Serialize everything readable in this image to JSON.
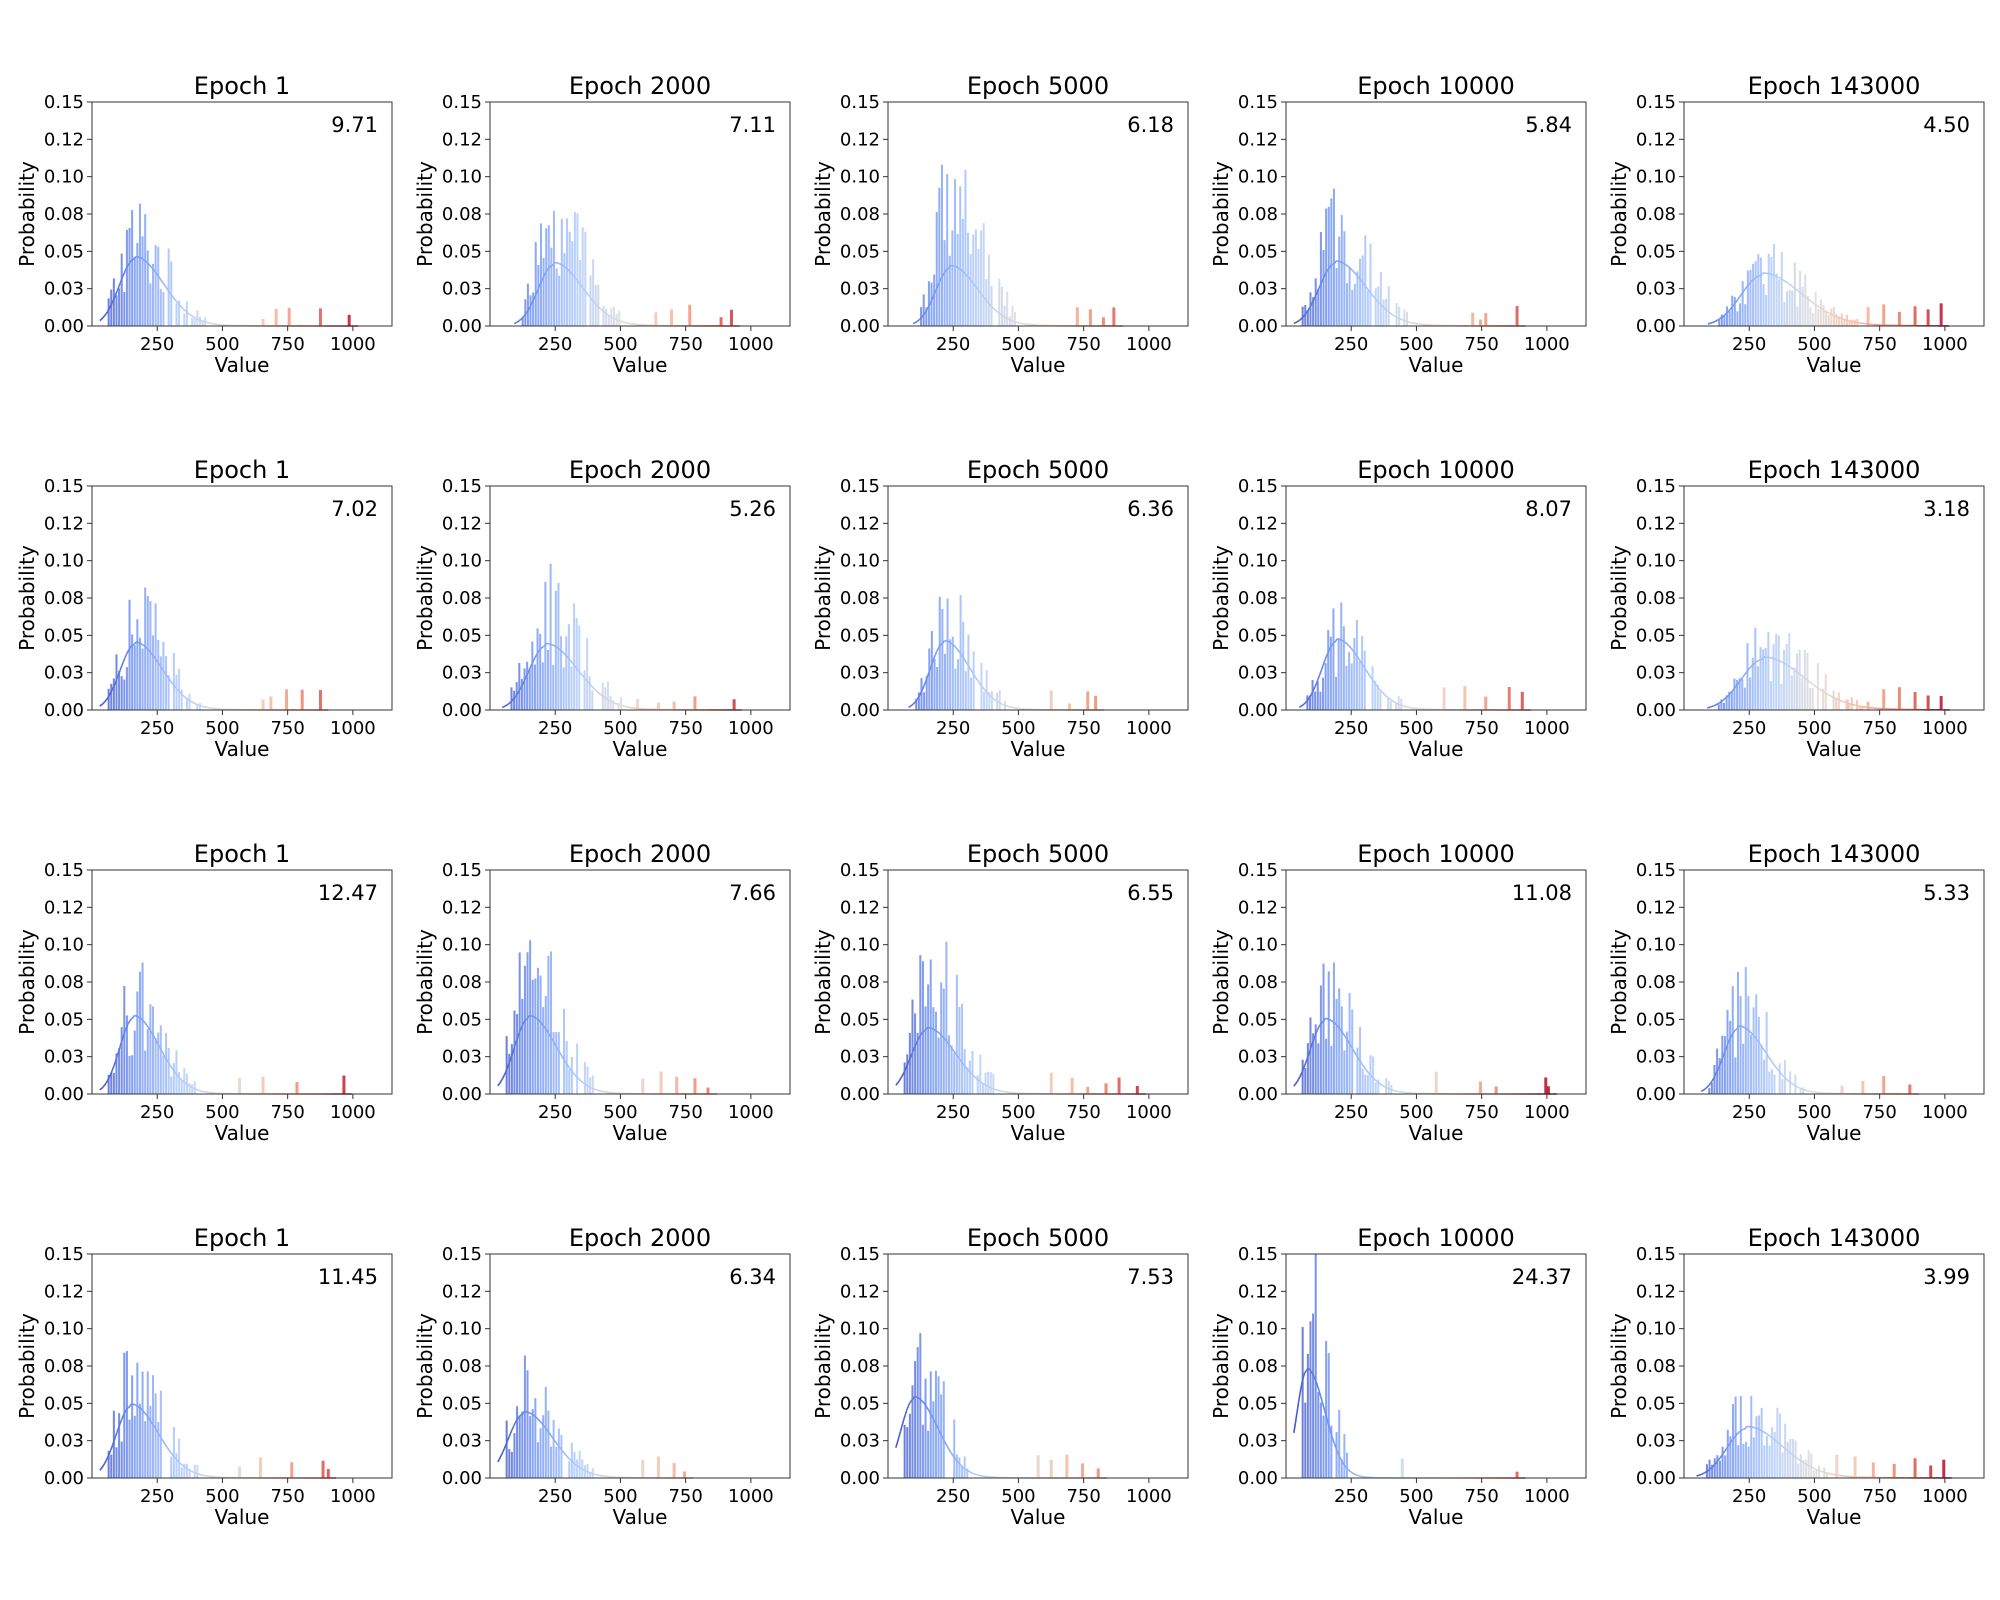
{
  "figure": {
    "x_label": "Value",
    "y_label": "Probability",
    "x_ticks": [
      250,
      500,
      750,
      1000
    ],
    "y_ticks": [
      "0.00",
      "0.03",
      "0.05",
      "0.08",
      "0.10",
      "0.12",
      "0.15"
    ],
    "colormap": [
      "#3b4cc0",
      "#7396f5",
      "#b0cbfc",
      "#dddcdc",
      "#f6bfa6",
      "#e7745b",
      "#b40426"
    ]
  },
  "chart_data": [
    {
      "type": "bar",
      "row": 1,
      "col": 1,
      "title": "Epoch 1",
      "stat": "9.71",
      "xlim": [
        0,
        1150
      ],
      "ylim": [
        0,
        0.15
      ],
      "peak": 0.082,
      "mean": 165,
      "sd": 95,
      "kde_peak": 0.045,
      "outliers": [
        650,
        700,
        750,
        870,
        980
      ]
    },
    {
      "type": "bar",
      "row": 1,
      "col": 2,
      "title": "Epoch 2000",
      "stat": "7.11",
      "xlim": [
        0,
        1150
      ],
      "ylim": [
        0,
        0.15
      ],
      "peak": 0.077,
      "mean": 245,
      "sd": 95,
      "kde_peak": 0.041,
      "outliers": [
        630,
        690,
        760,
        880,
        920
      ]
    },
    {
      "type": "bar",
      "row": 1,
      "col": 3,
      "title": "Epoch 5000",
      "stat": "6.18",
      "xlim": [
        0,
        1150
      ],
      "ylim": [
        0,
        0.15
      ],
      "peak": 0.108,
      "mean": 240,
      "sd": 90,
      "kde_peak": 0.039,
      "outliers": [
        720,
        770,
        820,
        860
      ]
    },
    {
      "type": "bar",
      "row": 1,
      "col": 4,
      "title": "Epoch 10000",
      "stat": "5.84",
      "xlim": [
        0,
        1150
      ],
      "ylim": [
        0,
        0.15
      ],
      "peak": 0.092,
      "mean": 190,
      "sd": 100,
      "kde_peak": 0.042,
      "outliers": [
        710,
        740,
        760,
        880
      ]
    },
    {
      "type": "bar",
      "row": 1,
      "col": 5,
      "title": "Epoch 143000",
      "stat": "4.50",
      "xlim": [
        0,
        1150
      ],
      "ylim": [
        0,
        0.15
      ],
      "peak": 0.055,
      "mean": 300,
      "sd": 130,
      "kde_peak": 0.034,
      "outliers": [
        700,
        760,
        820,
        880,
        930,
        980
      ]
    },
    {
      "type": "bar",
      "row": 2,
      "col": 1,
      "title": "Epoch 1",
      "stat": "7.02",
      "xlim": [
        0,
        1150
      ],
      "ylim": [
        0,
        0.15
      ],
      "peak": 0.082,
      "mean": 165,
      "sd": 90,
      "kde_peak": 0.044,
      "outliers": [
        650,
        680,
        740,
        800,
        870
      ]
    },
    {
      "type": "bar",
      "row": 2,
      "col": 2,
      "title": "Epoch 2000",
      "stat": "5.26",
      "xlim": [
        0,
        1150
      ],
      "ylim": [
        0,
        0.15
      ],
      "peak": 0.098,
      "mean": 215,
      "sd": 105,
      "kde_peak": 0.043,
      "outliers": [
        560,
        640,
        700,
        780,
        930
      ]
    },
    {
      "type": "bar",
      "row": 2,
      "col": 3,
      "title": "Epoch 5000",
      "stat": "6.36",
      "xlim": [
        0,
        1150
      ],
      "ylim": [
        0,
        0.15
      ],
      "peak": 0.077,
      "mean": 215,
      "sd": 85,
      "kde_peak": 0.045,
      "outliers": [
        620,
        690,
        760,
        790
      ]
    },
    {
      "type": "bar",
      "row": 2,
      "col": 4,
      "title": "Epoch 10000",
      "stat": "8.07",
      "xlim": [
        0,
        1150
      ],
      "ylim": [
        0,
        0.15
      ],
      "peak": 0.072,
      "mean": 195,
      "sd": 90,
      "kde_peak": 0.046,
      "outliers": [
        600,
        680,
        760,
        850,
        900
      ]
    },
    {
      "type": "bar",
      "row": 2,
      "col": 5,
      "title": "Epoch 143000",
      "stat": "3.18",
      "xlim": [
        0,
        1150
      ],
      "ylim": [
        0,
        0.15
      ],
      "peak": 0.055,
      "mean": 305,
      "sd": 135,
      "kde_peak": 0.034,
      "outliers": [
        620,
        700,
        760,
        820,
        880,
        930,
        980
      ]
    },
    {
      "type": "bar",
      "row": 3,
      "col": 1,
      "title": "Epoch 1",
      "stat": "12.47",
      "xlim": [
        0,
        1150
      ],
      "ylim": [
        0,
        0.15
      ],
      "peak": 0.088,
      "mean": 160,
      "sd": 85,
      "kde_peak": 0.051,
      "outliers": [
        560,
        650,
        780,
        960
      ]
    },
    {
      "type": "bar",
      "row": 3,
      "col": 2,
      "title": "Epoch 2000",
      "stat": "7.66",
      "xlim": [
        0,
        1150
      ],
      "ylim": [
        0,
        0.15
      ],
      "peak": 0.103,
      "mean": 150,
      "sd": 90,
      "kde_peak": 0.051,
      "outliers": [
        580,
        650,
        710,
        780,
        830
      ]
    },
    {
      "type": "bar",
      "row": 3,
      "col": 3,
      "title": "Epoch 5000",
      "stat": "6.55",
      "xlim": [
        0,
        1150
      ],
      "ylim": [
        0,
        0.15
      ],
      "peak": 0.102,
      "mean": 150,
      "sd": 95,
      "kde_peak": 0.043,
      "outliers": [
        620,
        700,
        760,
        830,
        880,
        950
      ]
    },
    {
      "type": "bar",
      "row": 3,
      "col": 4,
      "title": "Epoch 10000",
      "stat": "11.08",
      "xlim": [
        0,
        1150
      ],
      "ylim": [
        0,
        0.15
      ],
      "peak": 0.088,
      "mean": 150,
      "sd": 90,
      "kde_peak": 0.049,
      "outliers": [
        570,
        740,
        800,
        990,
        1000
      ]
    },
    {
      "type": "bar",
      "row": 3,
      "col": 5,
      "title": "Epoch 143000",
      "stat": "5.33",
      "xlim": [
        0,
        1150
      ],
      "ylim": [
        0,
        0.15
      ],
      "peak": 0.085,
      "mean": 210,
      "sd": 90,
      "kde_peak": 0.044,
      "outliers": [
        600,
        680,
        760,
        860
      ]
    },
    {
      "type": "bar",
      "row": 4,
      "col": 1,
      "title": "Epoch 1",
      "stat": "11.45",
      "xlim": [
        0,
        1150
      ],
      "ylim": [
        0,
        0.15
      ],
      "peak": 0.085,
      "mean": 150,
      "sd": 90,
      "kde_peak": 0.048,
      "outliers": [
        560,
        640,
        760,
        880,
        900
      ]
    },
    {
      "type": "bar",
      "row": 4,
      "col": 2,
      "title": "Epoch 2000",
      "stat": "6.34",
      "xlim": [
        0,
        1150
      ],
      "ylim": [
        0,
        0.15
      ],
      "peak": 0.082,
      "mean": 130,
      "sd": 95,
      "kde_peak": 0.043,
      "outliers": [
        580,
        640,
        700,
        740
      ]
    },
    {
      "type": "bar",
      "row": 4,
      "col": 3,
      "title": "Epoch 5000",
      "stat": "7.53",
      "xlim": [
        0,
        1150
      ],
      "ylim": [
        0,
        0.15
      ],
      "peak": 0.097,
      "mean": 100,
      "sd": 80,
      "kde_peak": 0.053,
      "outliers": [
        570,
        620,
        680,
        740,
        800
      ]
    },
    {
      "type": "bar",
      "row": 4,
      "col": 4,
      "title": "Epoch 10000",
      "stat": "24.37",
      "xlim": [
        0,
        1150
      ],
      "ylim": [
        0,
        0.15
      ],
      "peak": 0.15,
      "mean": 80,
      "sd": 60,
      "kde_peak": 0.072,
      "outliers": [
        440,
        880
      ]
    },
    {
      "type": "bar",
      "row": 4,
      "col": 5,
      "title": "Epoch 143000",
      "stat": "3.99",
      "xlim": [
        0,
        1150
      ],
      "ylim": [
        0,
        0.15
      ],
      "peak": 0.055,
      "mean": 240,
      "sd": 120,
      "kde_peak": 0.033,
      "outliers": [
        580,
        650,
        720,
        800,
        880,
        940,
        990
      ]
    }
  ]
}
